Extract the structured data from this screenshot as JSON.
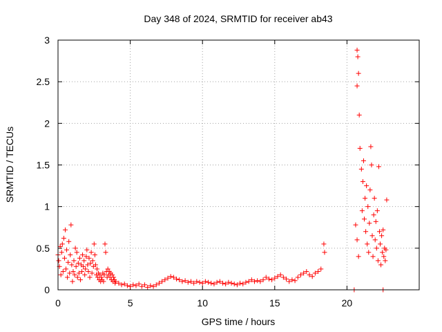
{
  "chart_data": {
    "type": "scatter",
    "title": "Day 348 of 2024, SRMTID for receiver ab43",
    "xlabel": "GPS time / hours",
    "ylabel": "SRMTID / TECUs",
    "xlim": [
      0,
      25
    ],
    "ylim": [
      0,
      3
    ],
    "xticks": [
      0,
      5,
      10,
      15,
      20
    ],
    "xtick_labels": [
      "0",
      "5",
      "10",
      "15",
      "20"
    ],
    "yticks": [
      0,
      0.5,
      1,
      1.5,
      2,
      2.5,
      3
    ],
    "ytick_labels": [
      "0",
      "0.5",
      "1",
      "1.5",
      "2",
      "2.5",
      "3"
    ],
    "grid": true,
    "marker": "+",
    "series": [
      {
        "name": "SRMTID",
        "color": "#ff0000",
        "points": [
          [
            0.0,
            0.42
          ],
          [
            0.05,
            0.35
          ],
          [
            0.1,
            0.28
          ],
          [
            0.15,
            0.52
          ],
          [
            0.2,
            0.18
          ],
          [
            0.25,
            0.45
          ],
          [
            0.3,
            0.55
          ],
          [
            0.35,
            0.22
          ],
          [
            0.4,
            0.62
          ],
          [
            0.45,
            0.38
          ],
          [
            0.5,
            0.72
          ],
          [
            0.55,
            0.25
          ],
          [
            0.6,
            0.48
          ],
          [
            0.65,
            0.15
          ],
          [
            0.7,
            0.33
          ],
          [
            0.75,
            0.58
          ],
          [
            0.8,
            0.2
          ],
          [
            0.85,
            0.42
          ],
          [
            0.9,
            0.78
          ],
          [
            0.95,
            0.3
          ],
          [
            1.0,
            0.1
          ],
          [
            1.05,
            0.22
          ],
          [
            1.1,
            0.35
          ],
          [
            1.15,
            0.18
          ],
          [
            1.2,
            0.5
          ],
          [
            1.25,
            0.28
          ],
          [
            1.3,
            0.45
          ],
          [
            1.35,
            0.15
          ],
          [
            1.4,
            0.32
          ],
          [
            1.45,
            0.2
          ],
          [
            1.5,
            0.38
          ],
          [
            1.55,
            0.12
          ],
          [
            1.6,
            0.3
          ],
          [
            1.65,
            0.22
          ],
          [
            1.7,
            0.42
          ],
          [
            1.75,
            0.28
          ],
          [
            1.8,
            0.35
          ],
          [
            1.85,
            0.18
          ],
          [
            1.9,
            0.25
          ],
          [
            1.95,
            0.4
          ],
          [
            2.0,
            0.48
          ],
          [
            2.05,
            0.3
          ],
          [
            2.1,
            0.22
          ],
          [
            2.15,
            0.38
          ],
          [
            2.2,
            0.15
          ],
          [
            2.25,
            0.32
          ],
          [
            2.3,
            0.45
          ],
          [
            2.35,
            0.2
          ],
          [
            2.4,
            0.35
          ],
          [
            2.45,
            0.28
          ],
          [
            2.5,
            0.55
          ],
          [
            2.55,
            0.42
          ],
          [
            2.6,
            0.3
          ],
          [
            2.65,
            0.18
          ],
          [
            2.7,
            0.25
          ],
          [
            2.75,
            0.15
          ],
          [
            2.8,
            0.2
          ],
          [
            2.85,
            0.12
          ],
          [
            2.9,
            0.18
          ],
          [
            2.95,
            0.1
          ],
          [
            3.0,
            0.15
          ],
          [
            3.05,
            0.12
          ],
          [
            3.1,
            0.2
          ],
          [
            3.15,
            0.1
          ],
          [
            3.2,
            0.18
          ],
          [
            3.25,
            0.55
          ],
          [
            3.3,
            0.45
          ],
          [
            3.35,
            0.22
          ],
          [
            3.4,
            0.15
          ],
          [
            3.45,
            0.25
          ],
          [
            3.5,
            0.18
          ],
          [
            3.55,
            0.22
          ],
          [
            3.6,
            0.15
          ],
          [
            3.65,
            0.2
          ],
          [
            3.7,
            0.12
          ],
          [
            3.75,
            0.18
          ],
          [
            3.8,
            0.1
          ],
          [
            3.85,
            0.15
          ],
          [
            3.9,
            0.12
          ],
          [
            3.95,
            0.08
          ],
          [
            4.0,
            0.1
          ],
          [
            4.2,
            0.08
          ],
          [
            4.4,
            0.06
          ],
          [
            4.6,
            0.07
          ],
          [
            4.8,
            0.05
          ],
          [
            5.0,
            0.04
          ],
          [
            5.2,
            0.06
          ],
          [
            5.4,
            0.05
          ],
          [
            5.6,
            0.07
          ],
          [
            5.8,
            0.04
          ],
          [
            6.0,
            0.06
          ],
          [
            6.2,
            0.03
          ],
          [
            6.4,
            0.05
          ],
          [
            6.6,
            0.04
          ],
          [
            6.8,
            0.06
          ],
          [
            7.0,
            0.08
          ],
          [
            7.2,
            0.1
          ],
          [
            7.4,
            0.12
          ],
          [
            7.6,
            0.14
          ],
          [
            7.8,
            0.16
          ],
          [
            8.0,
            0.15
          ],
          [
            8.2,
            0.13
          ],
          [
            8.4,
            0.12
          ],
          [
            8.6,
            0.1
          ],
          [
            8.8,
            0.11
          ],
          [
            9.0,
            0.09
          ],
          [
            9.2,
            0.1
          ],
          [
            9.4,
            0.08
          ],
          [
            9.6,
            0.1
          ],
          [
            9.8,
            0.09
          ],
          [
            10.0,
            0.08
          ],
          [
            10.2,
            0.1
          ],
          [
            10.4,
            0.09
          ],
          [
            10.6,
            0.08
          ],
          [
            10.8,
            0.07
          ],
          [
            11.0,
            0.09
          ],
          [
            11.2,
            0.1
          ],
          [
            11.4,
            0.08
          ],
          [
            11.6,
            0.07
          ],
          [
            11.8,
            0.09
          ],
          [
            12.0,
            0.08
          ],
          [
            12.2,
            0.07
          ],
          [
            12.4,
            0.06
          ],
          [
            12.6,
            0.08
          ],
          [
            12.8,
            0.07
          ],
          [
            13.0,
            0.09
          ],
          [
            13.2,
            0.1
          ],
          [
            13.4,
            0.12
          ],
          [
            13.6,
            0.1
          ],
          [
            13.8,
            0.11
          ],
          [
            14.0,
            0.1
          ],
          [
            14.2,
            0.12
          ],
          [
            14.4,
            0.15
          ],
          [
            14.6,
            0.13
          ],
          [
            14.8,
            0.12
          ],
          [
            15.0,
            0.14
          ],
          [
            15.2,
            0.16
          ],
          [
            15.4,
            0.18
          ],
          [
            15.6,
            0.15
          ],
          [
            15.8,
            0.13
          ],
          [
            16.0,
            0.1
          ],
          [
            16.2,
            0.12
          ],
          [
            16.4,
            0.11
          ],
          [
            16.6,
            0.15
          ],
          [
            16.8,
            0.18
          ],
          [
            17.0,
            0.2
          ],
          [
            17.2,
            0.22
          ],
          [
            17.4,
            0.18
          ],
          [
            17.6,
            0.16
          ],
          [
            17.8,
            0.2
          ],
          [
            18.0,
            0.22
          ],
          [
            18.2,
            0.25
          ],
          [
            18.4,
            0.55
          ],
          [
            18.45,
            0.45
          ],
          [
            20.7,
            2.88
          ],
          [
            20.75,
            2.8
          ],
          [
            20.8,
            2.6
          ],
          [
            20.7,
            2.45
          ],
          [
            20.85,
            2.1
          ],
          [
            20.6,
            0.78
          ],
          [
            20.7,
            0.6
          ],
          [
            20.8,
            0.4
          ],
          [
            20.9,
            1.7
          ],
          [
            21.0,
            1.45
          ],
          [
            21.05,
            0.95
          ],
          [
            21.1,
            1.3
          ],
          [
            21.15,
            1.55
          ],
          [
            21.2,
            0.85
          ],
          [
            21.25,
            1.1
          ],
          [
            21.3,
            0.7
          ],
          [
            21.35,
            1.25
          ],
          [
            21.4,
            0.55
          ],
          [
            21.45,
            1.0
          ],
          [
            21.5,
            0.45
          ],
          [
            21.55,
            0.8
          ],
          [
            21.6,
            1.2
          ],
          [
            21.65,
            1.72
          ],
          [
            21.7,
            1.5
          ],
          [
            21.75,
            0.65
          ],
          [
            21.8,
            0.4
          ],
          [
            21.85,
            0.9
          ],
          [
            21.9,
            1.1
          ],
          [
            21.95,
            0.6
          ],
          [
            22.0,
            0.82
          ],
          [
            22.05,
            0.5
          ],
          [
            22.1,
            0.95
          ],
          [
            22.15,
            0.35
          ],
          [
            22.2,
            1.48
          ],
          [
            22.25,
            0.7
          ],
          [
            22.3,
            0.55
          ],
          [
            22.35,
            0.3
          ],
          [
            22.4,
            0.65
          ],
          [
            22.45,
            0.45
          ],
          [
            22.5,
            0.72
          ],
          [
            22.55,
            0.4
          ],
          [
            22.6,
            0.5
          ],
          [
            22.65,
            0.35
          ],
          [
            22.7,
            0.48
          ],
          [
            22.75,
            1.08
          ],
          [
            22.5,
            0.0
          ],
          [
            20.5,
            0.0
          ]
        ]
      }
    ]
  }
}
